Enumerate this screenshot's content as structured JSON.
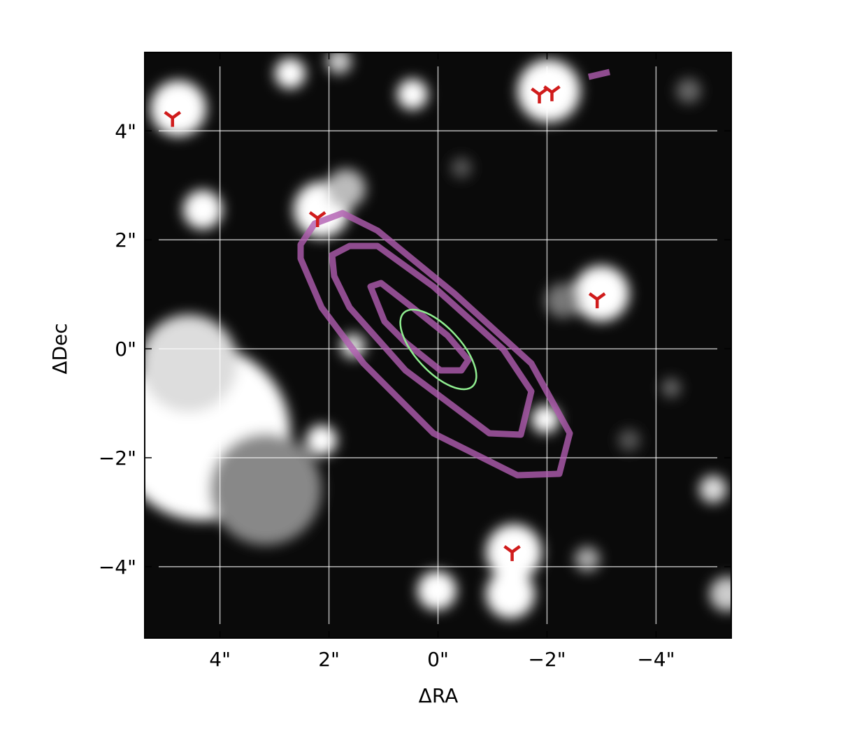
{
  "chart_data": {
    "type": "scatter",
    "xlabel": "ΔRA",
    "ylabel": "ΔDec",
    "xlim": [
      5.38,
      -5.38
    ],
    "ylim": [
      -5.31,
      5.44
    ],
    "xticks": [
      {
        "value": 4,
        "label": "4\""
      },
      {
        "value": 2,
        "label": "2\""
      },
      {
        "value": 0,
        "label": "0\""
      },
      {
        "value": -2,
        "label": "−2\""
      },
      {
        "value": -4,
        "label": "−4\""
      }
    ],
    "yticks": [
      {
        "value": 4,
        "label": "4\""
      },
      {
        "value": 2,
        "label": "2\""
      },
      {
        "value": 0,
        "label": "0\""
      },
      {
        "value": -2,
        "label": "−2\""
      },
      {
        "value": -4,
        "label": "−4\""
      }
    ],
    "grid": true,
    "color": "#d01c1c",
    "x": [
      4.87,
      2.21,
      -1.86,
      -2.09,
      -2.92,
      -1.36
    ],
    "values": [
      4.24,
      2.4,
      4.67,
      4.71,
      0.91,
      -3.73
    ]
  }
}
